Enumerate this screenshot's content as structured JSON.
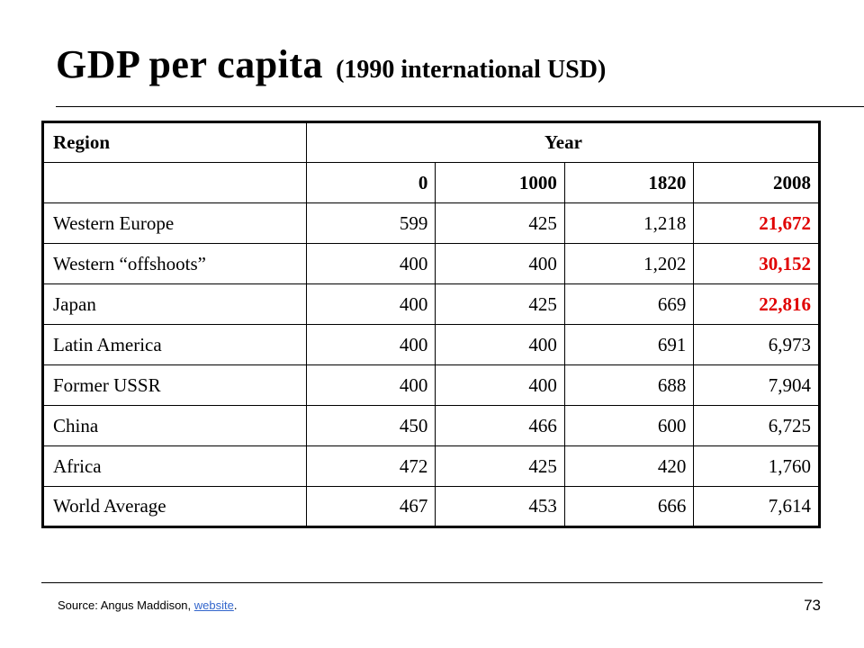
{
  "slide": {
    "title": "GDP per capita",
    "subtitle": "(1990 international USD)",
    "page_number": "73"
  },
  "table": {
    "header": {
      "region_label": "Region",
      "year_label": "Year",
      "years": [
        "0",
        "1000",
        "1820",
        "2008"
      ]
    },
    "rows": [
      {
        "region": "Western Europe",
        "values": [
          "599",
          "425",
          "1,218",
          "21,672"
        ],
        "highlight_2008": true
      },
      {
        "region": "Western “offshoots”",
        "values": [
          "400",
          "400",
          "1,202",
          "30,152"
        ],
        "highlight_2008": true
      },
      {
        "region": "Japan",
        "values": [
          "400",
          "425",
          "669",
          "22,816"
        ],
        "highlight_2008": true
      },
      {
        "region": "Latin America",
        "values": [
          "400",
          "400",
          "691",
          "6,973"
        ],
        "highlight_2008": false
      },
      {
        "region": "Former USSR",
        "values": [
          "400",
          "400",
          "688",
          "7,904"
        ],
        "highlight_2008": false
      },
      {
        "region": "China",
        "values": [
          "450",
          "466",
          "600",
          "6,725"
        ],
        "highlight_2008": false
      },
      {
        "region": "Africa",
        "values": [
          "472",
          "425",
          "420",
          "1,760"
        ],
        "highlight_2008": false
      },
      {
        "region": "World Average",
        "values": [
          "467",
          "453",
          "666",
          "7,614"
        ],
        "highlight_2008": false
      }
    ]
  },
  "footer": {
    "source_prefix": "Source:  Angus Maddison, ",
    "source_link": "website",
    "source_suffix": "."
  },
  "colors": {
    "highlight": "#e00000",
    "link": "#3366cc",
    "text": "#000000"
  }
}
